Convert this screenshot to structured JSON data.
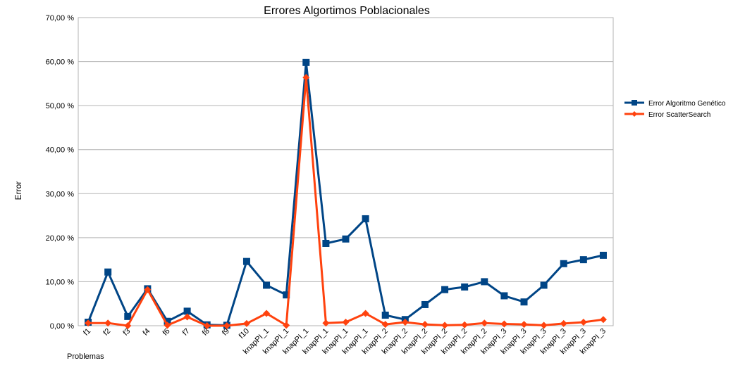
{
  "chart_data": {
    "type": "line",
    "title": "Errores Algortimos Poblacionales",
    "xlabel": "Problemas",
    "ylabel": "Error",
    "ylim": [
      0,
      70
    ],
    "yticks": [
      "0,00 %",
      "10,00 %",
      "20,00 %",
      "30,00 %",
      "40,00 %",
      "50,00 %",
      "60,00 %",
      "70,00 %"
    ],
    "grid": true,
    "legend_position": "right",
    "categories": [
      "f1",
      "f2",
      "f3",
      "f4",
      "f6",
      "f7",
      "f8",
      "f9",
      "f10",
      "knapPI_1",
      "knapPI_1",
      "knapPI_1",
      "knapPI_1",
      "knapPI_1",
      "knapPI_1",
      "knapPI_2",
      "knapPI_2",
      "knapPI_2",
      "knapPI_2",
      "knapPI_2",
      "knapPI_2",
      "knapPI_3",
      "knapPI_3",
      "knapPI_3",
      "knapPI_3",
      "knapPI_3",
      "knapPI_3"
    ],
    "series": [
      {
        "name": "Error Algoritmo Genético",
        "color": "#004586",
        "marker": "square",
        "values": [
          0.8,
          12.2,
          2.1,
          8.4,
          1.0,
          3.3,
          0.2,
          0.1,
          14.6,
          9.2,
          7.0,
          59.8,
          18.7,
          19.7,
          24.3,
          2.4,
          1.4,
          4.8,
          8.2,
          8.8,
          10.0,
          6.8,
          5.4,
          9.2,
          14.1,
          15.0,
          16.0
        ]
      },
      {
        "name": "Error ScatterSearch",
        "color": "#ff420e",
        "marker": "diamond",
        "values": [
          0.6,
          0.6,
          0.0,
          8.2,
          0.1,
          2.0,
          0.0,
          0.0,
          0.5,
          2.8,
          0.1,
          56.4,
          0.6,
          0.8,
          2.8,
          0.3,
          0.8,
          0.3,
          0.1,
          0.2,
          0.6,
          0.4,
          0.3,
          0.1,
          0.5,
          0.8,
          1.4
        ]
      }
    ]
  }
}
